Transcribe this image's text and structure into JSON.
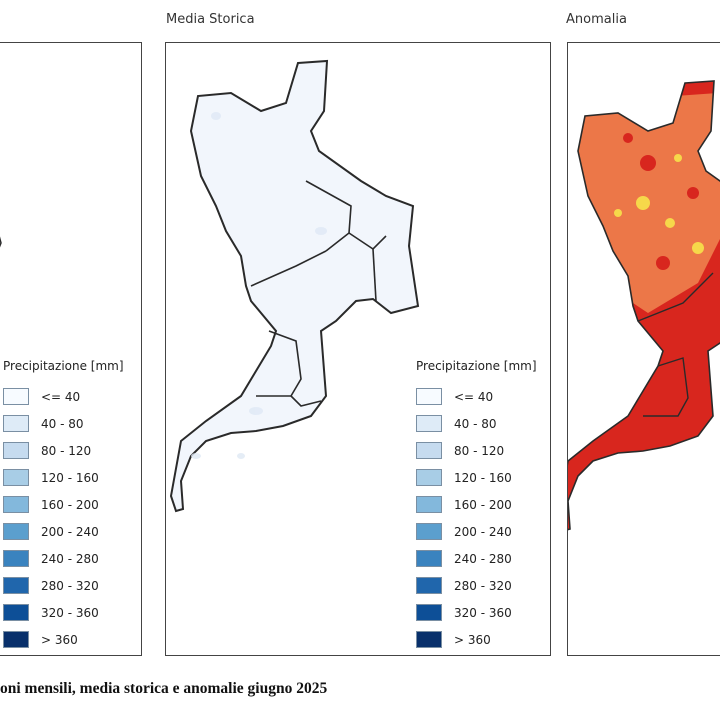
{
  "panels": {
    "media_storica": {
      "title": "Media Storica"
    },
    "anomalia": {
      "title": "Anomalia"
    }
  },
  "legend": {
    "title": "Precipitazione [mm]",
    "classes": [
      {
        "label": "<= 40",
        "color": "#f7fbff"
      },
      {
        "label": "40 - 80",
        "color": "#deebf7"
      },
      {
        "label": "80 - 120",
        "color": "#c6dbef"
      },
      {
        "label": "120 - 160",
        "color": "#a8cde6"
      },
      {
        "label": "160 - 200",
        "color": "#83b8dc"
      },
      {
        "label": "200 - 240",
        "color": "#5b9fce"
      },
      {
        "label": "240 - 280",
        "color": "#3a83bf"
      },
      {
        "label": "280 - 320",
        "color": "#2066ac"
      },
      {
        "label": "320 - 360",
        "color": "#0d4f97"
      },
      {
        "label": "> 360",
        "color": "#08306b"
      }
    ]
  },
  "colors": {
    "historical_fill": "#f2f6fc",
    "anomaly_base": "#d8261e",
    "anomaly_orange": "#ec7748",
    "anomaly_yellow": "#f6d84a",
    "anomaly_blue": "#5aa9d6",
    "border": "#2a2a2a"
  },
  "caption": "oni mensili, media storica e anomalie giugno 2025"
}
